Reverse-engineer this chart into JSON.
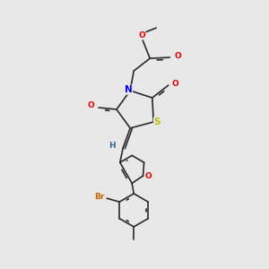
{
  "bg_color": "#e8e8e8",
  "bond_color": "#2a2a2a",
  "atom_colors": {
    "N": "#0000ee",
    "O": "#dd0000",
    "S": "#bbbb00",
    "Br": "#cc6600",
    "H": "#336699",
    "C": "#2a2a2a"
  },
  "font_size": 6.5,
  "bond_lw": 1.2,
  "dbl_sep": 0.022
}
